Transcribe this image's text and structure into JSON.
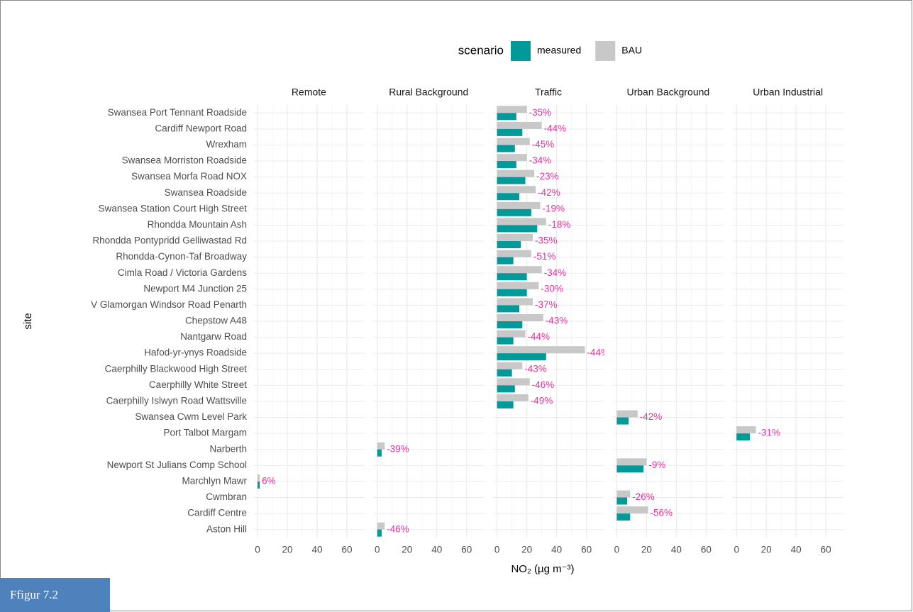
{
  "chart_data": {
    "type": "bar",
    "orientation": "horizontal",
    "legend_title": "scenario",
    "xlabel": "NO₂ (µg m⁻³)",
    "ylabel": "site",
    "caption": "Ffigur 7.2",
    "facets": [
      "Remote",
      "Rural Background",
      "Traffic",
      "Urban Background",
      "Urban Industrial"
    ],
    "categories": [
      "Swansea Port Tennant Roadside",
      "Cardiff Newport Road",
      "Wrexham",
      "Swansea Morriston Roadside",
      "Swansea Morfa Road NOX",
      "Swansea Roadside",
      "Swansea Station Court High Street",
      "Rhondda Mountain Ash",
      "Rhondda Pontypridd Gelliwastad Rd",
      "Rhondda-Cynon-Taf Broadway",
      "Cimla Road / Victoria Gardens",
      "Newport M4 Junction 25",
      "V Glamorgan Windsor Road Penarth",
      "Chepstow A48",
      "Nantgarw Road",
      "Hafod-yr-ynys Roadside",
      "Caerphilly Blackwood High Street",
      "Caerphilly White Street",
      "Caerphilly Islwyn Road Wattsville",
      "Swansea Cwm Level Park",
      "Port Talbot Margam",
      "Narberth",
      "Newport St Julians Comp School",
      "Marchlyn Mawr",
      "Cwmbran",
      "Cardiff Centre",
      "Aston Hill"
    ],
    "category_facet": [
      "Traffic",
      "Traffic",
      "Traffic",
      "Traffic",
      "Traffic",
      "Traffic",
      "Traffic",
      "Traffic",
      "Traffic",
      "Traffic",
      "Traffic",
      "Traffic",
      "Traffic",
      "Traffic",
      "Traffic",
      "Traffic",
      "Traffic",
      "Traffic",
      "Traffic",
      "Urban Background",
      "Urban Industrial",
      "Rural Background",
      "Urban Background",
      "Remote",
      "Urban Background",
      "Urban Background",
      "Rural Background"
    ],
    "series": [
      {
        "name": "measured",
        "color": "#009a9a",
        "values": [
          13,
          17,
          12,
          13,
          19,
          15,
          23,
          27,
          16,
          11,
          20,
          20,
          15,
          17,
          11,
          33,
          10,
          12,
          11,
          8,
          9,
          3,
          18,
          1.5,
          7,
          9,
          3
        ]
      },
      {
        "name": "BAU",
        "color": "#c8c8c8",
        "values": [
          20,
          30,
          22,
          20,
          25,
          26,
          29,
          33,
          24,
          23,
          30,
          28,
          24,
          31,
          19,
          59,
          17,
          22,
          21,
          14,
          13,
          5,
          20,
          1.5,
          9,
          21,
          5
        ]
      }
    ],
    "change_labels": [
      "-35%",
      "-44%",
      "-45%",
      "-34%",
      "-23%",
      "-42%",
      "-19%",
      "-18%",
      "-35%",
      "-51%",
      "-34%",
      "-30%",
      "-37%",
      "-43%",
      "-44%",
      "-44%",
      "-43%",
      "-46%",
      "-49%",
      "-42%",
      "-31%",
      "-39%",
      "-9%",
      "6%",
      "-26%",
      "-56%",
      "-46%"
    ],
    "label_color": "#e6339a",
    "xlim": [
      -3,
      72
    ],
    "xticks": [
      0,
      20,
      40,
      60
    ],
    "grid": true
  }
}
